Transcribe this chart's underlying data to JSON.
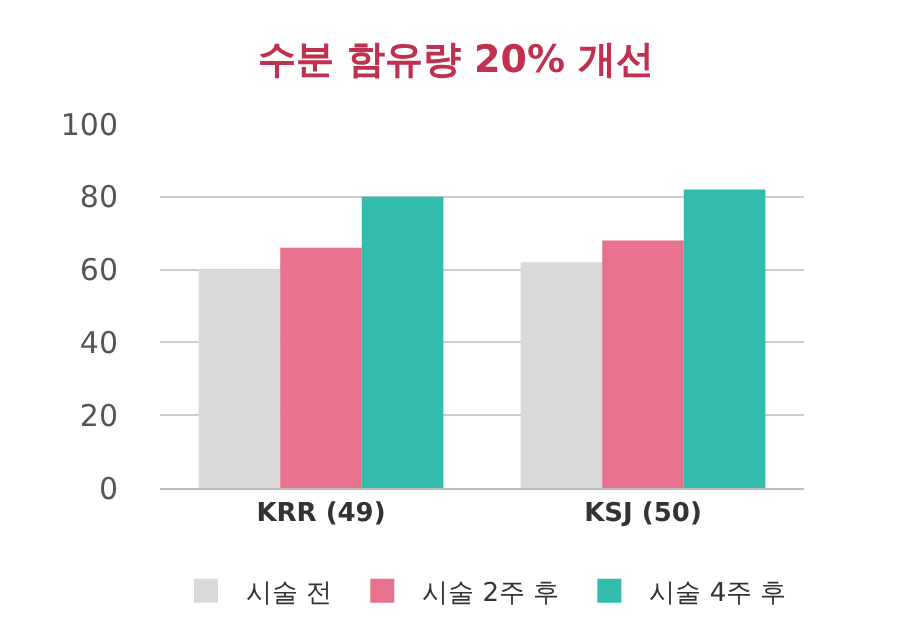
{
  "chart_data": {
    "type": "bar",
    "title": "수분 함유량 20% 개선",
    "categories": [
      "KRR (49)",
      "KSJ (50)"
    ],
    "series": [
      {
        "name": "시술 전",
        "color": "#d9d9d9",
        "values": [
          60,
          62
        ]
      },
      {
        "name": "시술 2주 후",
        "color": "#e8728e",
        "values": [
          66,
          68
        ]
      },
      {
        "name": "시술 4주 후",
        "color": "#33bbab",
        "values": [
          80,
          82
        ]
      }
    ],
    "ylim": [
      0,
      100
    ],
    "yticks": [
      0,
      20,
      40,
      60,
      80,
      100
    ],
    "grid": "y",
    "legend": "bottom"
  }
}
